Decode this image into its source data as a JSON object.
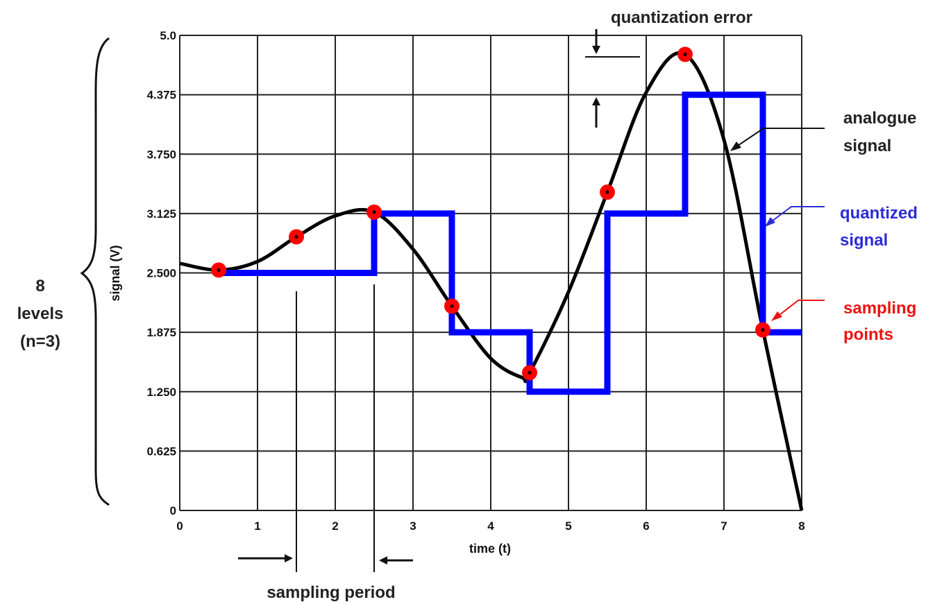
{
  "chart_data": {
    "type": "line",
    "xlabel": "time (t)",
    "ylabel": "signal (V)",
    "xlim": [
      0,
      8
    ],
    "ylim": [
      0,
      5.0
    ],
    "grid": true,
    "x_ticks": [
      "0",
      "1",
      "2",
      "3",
      "4",
      "5",
      "6",
      "7",
      "8"
    ],
    "y_ticks": [
      "0",
      "0.625",
      "1.250",
      "1.875",
      "2.500",
      "3.125",
      "3.750",
      "4.375",
      "5.0"
    ],
    "series": [
      {
        "name": "analogue signal",
        "color": "#000000",
        "x": [
          0,
          0.5,
          1.0,
          1.5,
          2.0,
          2.5,
          3.0,
          3.5,
          4.0,
          4.4,
          4.5,
          5.0,
          5.5,
          6.0,
          6.5,
          7.0,
          7.5,
          8.0
        ],
        "y": [
          2.6,
          2.53,
          2.62,
          2.88,
          3.1,
          3.14,
          2.75,
          2.15,
          1.6,
          1.4,
          1.45,
          2.3,
          3.35,
          4.4,
          4.8,
          3.9,
          1.9,
          0.0
        ]
      },
      {
        "name": "quantized signal",
        "color": "#0000ff",
        "type": "step",
        "x": [
          0.5,
          2.5,
          2.5,
          3.5,
          3.5,
          4.5,
          4.5,
          5.5,
          5.5,
          6.5,
          6.5,
          7.5,
          7.5,
          8.0
        ],
        "y": [
          2.5,
          2.5,
          3.125,
          3.125,
          1.875,
          1.875,
          1.25,
          1.25,
          3.125,
          3.125,
          4.375,
          4.375,
          1.875,
          1.875
        ]
      },
      {
        "name": "sampling points",
        "color": "#ff0000",
        "type": "scatter",
        "x": [
          0.5,
          1.5,
          2.5,
          3.5,
          4.5,
          5.5,
          6.5,
          7.5
        ],
        "y": [
          2.53,
          2.88,
          3.14,
          2.15,
          1.45,
          3.35,
          4.8,
          1.9
        ]
      }
    ],
    "annotations": {
      "levels_line1": "8",
      "levels_line2": "levels",
      "levels_line3": "(n=3)",
      "quantization_error": "quantization error",
      "analogue_line1": "analogue",
      "analogue_line2": "signal",
      "quantized_line1": "quantized",
      "quantized_line2": "signal",
      "sampling_line1": "sampling",
      "sampling_line2": "points",
      "sampling_period": "sampling period"
    }
  }
}
